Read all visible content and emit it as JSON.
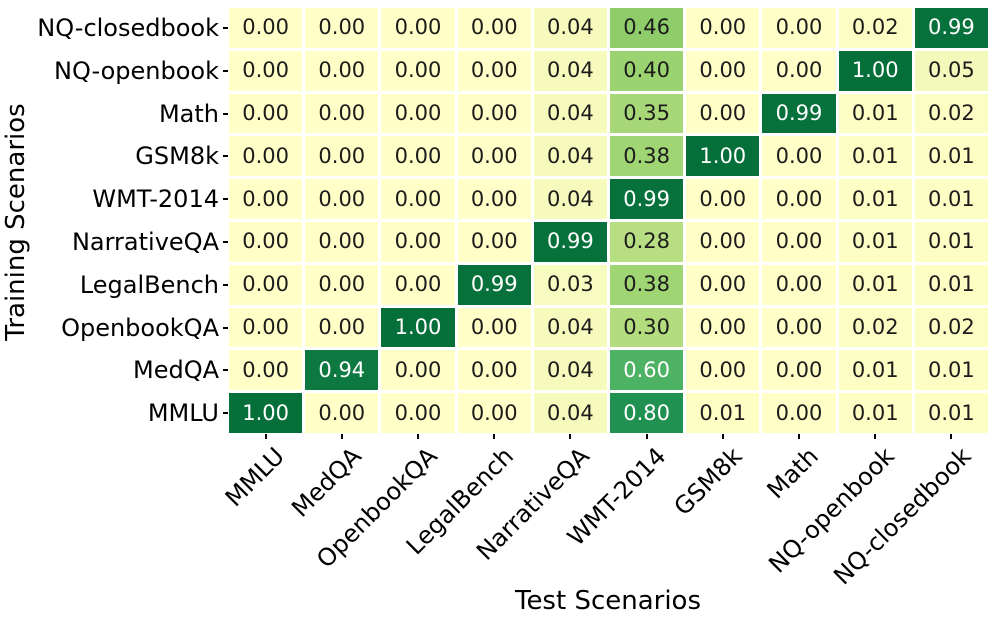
{
  "chart_data": {
    "type": "heatmap",
    "title": "",
    "xlabel": "Test Scenarios",
    "ylabel": "Training Scenarios",
    "x_categories": [
      "MMLU",
      "MedQA",
      "OpenbookQA",
      "LegalBench",
      "NarrativeQA",
      "WMT-2014",
      "GSM8k",
      "Math",
      "NQ-openbook",
      "NQ-closedbook"
    ],
    "y_categories": [
      "NQ-closedbook",
      "NQ-openbook",
      "Math",
      "GSM8k",
      "WMT-2014",
      "NarrativeQA",
      "LegalBench",
      "OpenbookQA",
      "MedQA",
      "MMLU"
    ],
    "values": [
      [
        0.0,
        0.0,
        0.0,
        0.0,
        0.04,
        0.46,
        0.0,
        0.0,
        0.02,
        0.99
      ],
      [
        0.0,
        0.0,
        0.0,
        0.0,
        0.04,
        0.4,
        0.0,
        0.0,
        1.0,
        0.05
      ],
      [
        0.0,
        0.0,
        0.0,
        0.0,
        0.04,
        0.35,
        0.0,
        0.99,
        0.01,
        0.02
      ],
      [
        0.0,
        0.0,
        0.0,
        0.0,
        0.04,
        0.38,
        1.0,
        0.0,
        0.01,
        0.01
      ],
      [
        0.0,
        0.0,
        0.0,
        0.0,
        0.04,
        0.99,
        0.0,
        0.0,
        0.01,
        0.01
      ],
      [
        0.0,
        0.0,
        0.0,
        0.0,
        0.99,
        0.28,
        0.0,
        0.0,
        0.01,
        0.01
      ],
      [
        0.0,
        0.0,
        0.0,
        0.99,
        0.03,
        0.38,
        0.0,
        0.0,
        0.01,
        0.01
      ],
      [
        0.0,
        0.0,
        1.0,
        0.0,
        0.04,
        0.3,
        0.0,
        0.0,
        0.02,
        0.02
      ],
      [
        0.0,
        0.94,
        0.0,
        0.0,
        0.04,
        0.6,
        0.0,
        0.0,
        0.01,
        0.01
      ],
      [
        1.0,
        0.0,
        0.0,
        0.0,
        0.04,
        0.8,
        0.01,
        0.0,
        0.01,
        0.01
      ]
    ],
    "value_decimals": 2,
    "value_range": [
      0,
      1
    ],
    "grid_lines": "white",
    "legend": "none",
    "colormap": {
      "name": "YlGn-like",
      "stops": [
        {
          "v": 0.0,
          "c": "#ffffc7"
        },
        {
          "v": 0.04,
          "c": "#f6fabc"
        },
        {
          "v": 0.3,
          "c": "#b2dc7d"
        },
        {
          "v": 0.46,
          "c": "#8ecd6a"
        },
        {
          "v": 0.6,
          "c": "#4eb264"
        },
        {
          "v": 0.8,
          "c": "#209150"
        },
        {
          "v": 1.0,
          "c": "#056f3a"
        }
      ],
      "text_dark": "#1c1c1c",
      "text_light": "#ffffff",
      "light_text_threshold": 0.5
    }
  }
}
